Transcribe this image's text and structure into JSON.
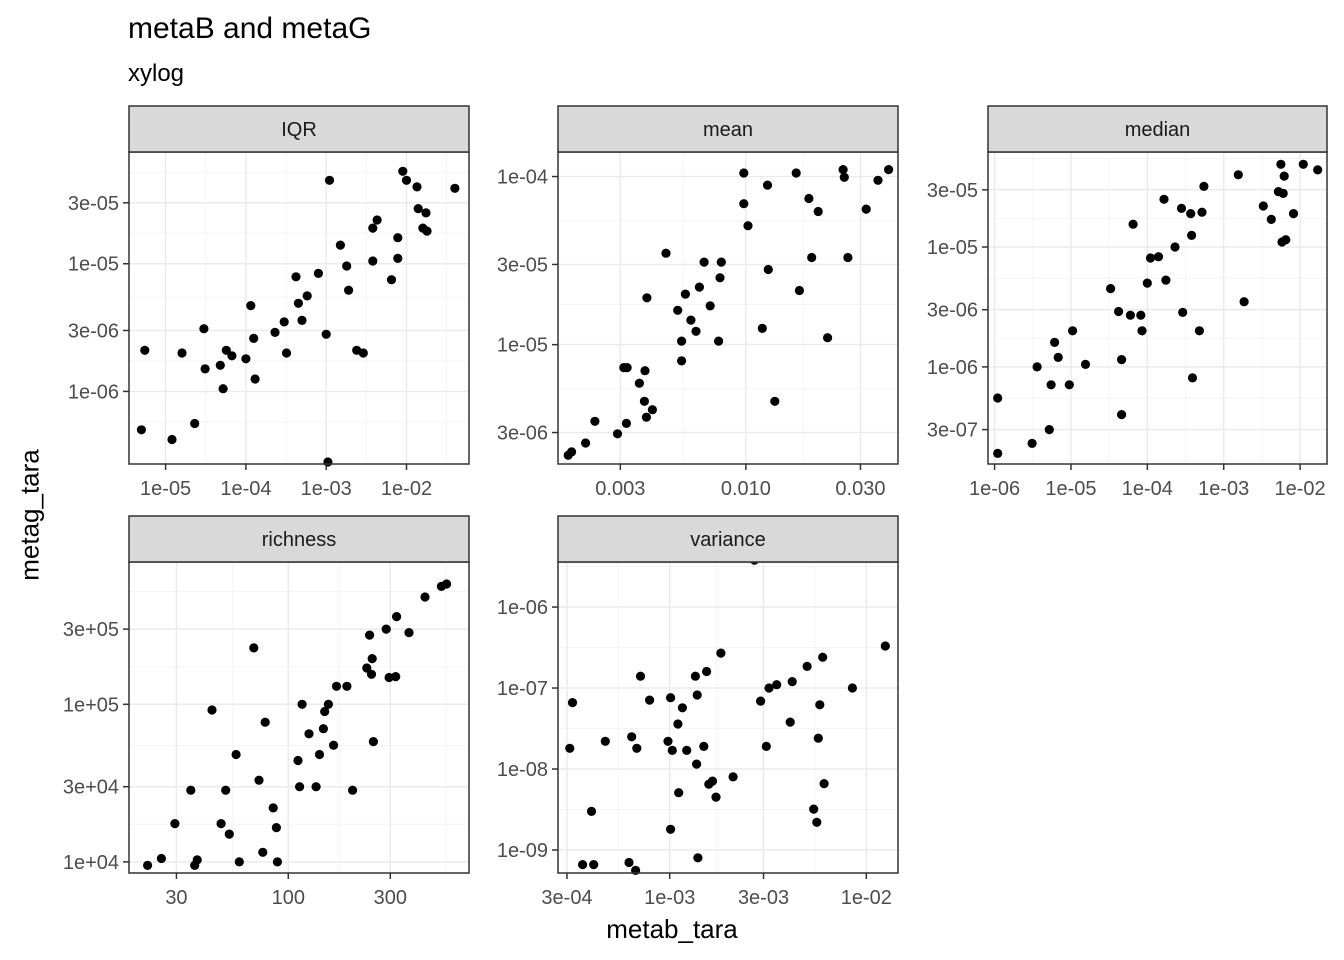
{
  "title": "metaB and metaG",
  "subtitle": "xylog",
  "xlabel": "metab_tara",
  "ylabel": "metag_tara",
  "colors": {
    "point": "#000000",
    "strip": "#d9d9d9",
    "grid_major": "#ebebeb",
    "grid_minor": "#f5f5f5",
    "panel_border": "#333333"
  },
  "chart_data": {
    "type": "scatter",
    "title": "metaB and metaG",
    "subtitle": "xylog",
    "xlabel": "metab_tara",
    "ylabel": "metag_tara",
    "x_scale": "log10",
    "y_scale": "log10",
    "grid": true,
    "facets": [
      {
        "name": "IQR",
        "xlim": [
          3.5e-06,
          0.06
        ],
        "ylim": [
          2.7e-07,
          7.5e-05
        ],
        "x_ticks": [
          1e-05,
          0.0001,
          0.001,
          0.01
        ],
        "x_tick_labels": [
          "1e-05",
          "1e-04",
          "1e-03",
          "1e-02"
        ],
        "y_ticks": [
          1e-06,
          3e-06,
          1e-05,
          3e-05
        ],
        "y_tick_labels": [
          "1e-06",
          "3e-06",
          "1e-05",
          "3e-05"
        ],
        "points": [
          [
            5e-06,
            5e-07
          ],
          [
            5.5e-06,
            2.1e-06
          ],
          [
            1.2e-05,
            4.2e-07
          ],
          [
            1.6e-05,
            2e-06
          ],
          [
            2.3e-05,
            5.6e-07
          ],
          [
            3e-05,
            3.1e-06
          ],
          [
            3.1e-05,
            1.5e-06
          ],
          [
            4.8e-05,
            1.6e-06
          ],
          [
            5.2e-05,
            1.05e-06
          ],
          [
            5.7e-05,
            2.1e-06
          ],
          [
            6.7e-05,
            1.9e-06
          ],
          [
            0.0001,
            1.8e-06
          ],
          [
            0.000115,
            4.7e-06
          ],
          [
            0.000125,
            2.6e-06
          ],
          [
            0.00013,
            1.25e-06
          ],
          [
            0.00023,
            2.9e-06
          ],
          [
            0.0003,
            3.5e-06
          ],
          [
            0.00032,
            2e-06
          ],
          [
            0.00042,
            7.9e-06
          ],
          [
            0.00045,
            4.9e-06
          ],
          [
            0.0005,
            3.6e-06
          ],
          [
            0.00058,
            5.6e-06
          ],
          [
            0.0008,
            8.4e-06
          ],
          [
            0.001,
            2.8e-06
          ],
          [
            0.00105,
            2.8e-07
          ],
          [
            0.0011,
            4.5e-05
          ],
          [
            0.0015,
            1.4e-05
          ],
          [
            0.0018,
            9.6e-06
          ],
          [
            0.0019,
            6.2e-06
          ],
          [
            0.0024,
            2.1e-06
          ],
          [
            0.0029,
            2e-06
          ],
          [
            0.0038,
            1.05e-05
          ],
          [
            0.0038,
            1.9e-05
          ],
          [
            0.0043,
            2.2e-05
          ],
          [
            0.0065,
            7.5e-06
          ],
          [
            0.0078,
            1.6e-05
          ],
          [
            0.0078,
            1.1e-05
          ],
          [
            0.009,
            5.3e-05
          ],
          [
            0.01,
            4.5e-05
          ],
          [
            0.0135,
            4e-05
          ],
          [
            0.014,
            2.7e-05
          ],
          [
            0.016,
            1.9e-05
          ],
          [
            0.0175,
            2.5e-05
          ],
          [
            0.018,
            1.8e-05
          ],
          [
            0.04,
            3.9e-05
          ]
        ]
      },
      {
        "name": "mean",
        "xlim": [
          0.00165,
          0.043
        ],
        "ylim": [
          1.95e-06,
          0.00014
        ],
        "x_ticks": [
          0.003,
          0.01,
          0.03
        ],
        "x_tick_labels": [
          "0.003",
          "0.010",
          "0.030"
        ],
        "y_ticks": [
          3e-06,
          1e-05,
          3e-05,
          0.0001
        ],
        "y_tick_labels": [
          "3e-06",
          "1e-05",
          "3e-05",
          "1e-04"
        ],
        "points": [
          [
            0.00182,
            2.2e-06
          ],
          [
            0.00188,
            2.3e-06
          ],
          [
            0.00215,
            2.6e-06
          ],
          [
            0.00235,
            3.5e-06
          ],
          [
            0.00292,
            2.95e-06
          ],
          [
            0.0031,
            7.3e-06
          ],
          [
            0.0032,
            7.3e-06
          ],
          [
            0.00318,
            3.4e-06
          ],
          [
            0.0036,
            5.9e-06
          ],
          [
            0.00378,
            4.6e-06
          ],
          [
            0.0038,
            7e-06
          ],
          [
            0.00385,
            3.7e-06
          ],
          [
            0.00387,
            1.9e-05
          ],
          [
            0.00408,
            4.1e-06
          ],
          [
            0.00465,
            3.5e-05
          ],
          [
            0.0052,
            1.6e-05
          ],
          [
            0.0054,
            1.05e-05
          ],
          [
            0.0054,
            8e-06
          ],
          [
            0.0056,
            2e-05
          ],
          [
            0.0059,
            1.4e-05
          ],
          [
            0.0062,
            1.2e-05
          ],
          [
            0.0064,
            2.2e-05
          ],
          [
            0.0067,
            3.1e-05
          ],
          [
            0.0071,
            1.7e-05
          ],
          [
            0.0077,
            1.05e-05
          ],
          [
            0.0078,
            2.5e-05
          ],
          [
            0.0079,
            3.1e-05
          ],
          [
            0.0098,
            0.000105
          ],
          [
            0.0098,
            6.9e-05
          ],
          [
            0.0102,
            5.1e-05
          ],
          [
            0.0117,
            1.25e-05
          ],
          [
            0.0123,
            8.9e-05
          ],
          [
            0.0124,
            2.8e-05
          ],
          [
            0.0132,
            4.6e-06
          ],
          [
            0.0162,
            0.000105
          ],
          [
            0.0167,
            2.1e-05
          ],
          [
            0.0183,
            7.4e-05
          ],
          [
            0.0188,
            3.3e-05
          ],
          [
            0.02,
            6.2e-05
          ],
          [
            0.0219,
            1.1e-05
          ],
          [
            0.0254,
            0.00011
          ],
          [
            0.0257,
            9.9e-05
          ],
          [
            0.0266,
            3.3e-05
          ],
          [
            0.0317,
            6.4e-05
          ],
          [
            0.0355,
            9.5e-05
          ],
          [
            0.0393,
            0.00011
          ]
        ]
      },
      {
        "name": "median",
        "xlim": [
          8.2e-07,
          0.0225
        ],
        "ylim": [
          1.55e-07,
          6.2e-05
        ],
        "x_ticks": [
          1e-06,
          1e-05,
          0.0001,
          0.001,
          0.01
        ],
        "x_tick_labels": [
          "1e-06",
          "1e-05",
          "1e-04",
          "1e-03",
          "1e-02"
        ],
        "y_ticks": [
          3e-07,
          1e-06,
          3e-06,
          1e-05,
          3e-05
        ],
        "y_tick_labels": [
          "3e-07",
          "1e-06",
          "3e-06",
          "1e-05",
          "3e-05"
        ],
        "points": [
          [
            1.1e-06,
            5.5e-07
          ],
          [
            1.1e-06,
            1.9e-07
          ],
          [
            3.1e-06,
            2.3e-07
          ],
          [
            3.6e-06,
            1e-06
          ],
          [
            5.2e-06,
            3e-07
          ],
          [
            5.5e-06,
            7.1e-07
          ],
          [
            6.1e-06,
            1.6e-06
          ],
          [
            6.8e-06,
            1.2e-06
          ],
          [
            9.5e-06,
            7.1e-07
          ],
          [
            1.05e-05,
            2e-06
          ],
          [
            1.55e-05,
            1.05e-06
          ],
          [
            3.3e-05,
            4.5e-06
          ],
          [
            4.2e-05,
            2.9e-06
          ],
          [
            4.6e-05,
            1.15e-06
          ],
          [
            4.6e-05,
            4e-07
          ],
          [
            6e-05,
            2.7e-06
          ],
          [
            6.5e-05,
            1.55e-05
          ],
          [
            8.2e-05,
            2.7e-06
          ],
          [
            8.5e-05,
            2e-06
          ],
          [
            0.0001,
            5e-06
          ],
          [
            0.00011,
            8.1e-06
          ],
          [
            0.00014,
            8.3e-06
          ],
          [
            0.000165,
            2.5e-05
          ],
          [
            0.000175,
            5.3e-06
          ],
          [
            0.00023,
            1e-05
          ],
          [
            0.00028,
            2.1e-05
          ],
          [
            0.00029,
            2.85e-06
          ],
          [
            0.00037,
            1.9e-05
          ],
          [
            0.00038,
            1.25e-05
          ],
          [
            0.00039,
            8.1e-07
          ],
          [
            0.00048,
            2e-06
          ],
          [
            0.00052,
            1.95e-05
          ],
          [
            0.00055,
            3.2e-05
          ],
          [
            0.00155,
            4e-05
          ],
          [
            0.00185,
            3.5e-06
          ],
          [
            0.0033,
            2.2e-05
          ],
          [
            0.0042,
            1.7e-05
          ],
          [
            0.0052,
            2.9e-05
          ],
          [
            0.0056,
            4.9e-05
          ],
          [
            0.0058,
            1.1e-05
          ],
          [
            0.006,
            2.8e-05
          ],
          [
            0.0062,
            3.9e-05
          ],
          [
            0.0065,
            1.15e-05
          ],
          [
            0.0082,
            1.9e-05
          ],
          [
            0.011,
            4.9e-05
          ],
          [
            0.017,
            4.4e-05
          ]
        ]
      },
      {
        "name": "richness",
        "xlim": [
          18,
          700
        ],
        "ylim": [
          8500,
          800000
        ],
        "x_ticks": [
          30,
          100,
          300
        ],
        "x_tick_labels": [
          "30",
          "100",
          "300"
        ],
        "y_ticks": [
          10000,
          30000,
          100000,
          300000
        ],
        "y_tick_labels": [
          "1e+04",
          "3e+04",
          "1e+05",
          "3e+05"
        ],
        "points": [
          [
            22,
            9500
          ],
          [
            25.5,
            10500
          ],
          [
            29.5,
            17500
          ],
          [
            35,
            28500
          ],
          [
            36.5,
            9500
          ],
          [
            37.5,
            10300
          ],
          [
            44,
            92000
          ],
          [
            48.5,
            17500
          ],
          [
            51,
            28500
          ],
          [
            53,
            15000
          ],
          [
            57,
            48000
          ],
          [
            59,
            10000
          ],
          [
            69,
            228000
          ],
          [
            73,
            33000
          ],
          [
            76,
            11500
          ],
          [
            78,
            77000
          ],
          [
            85,
            22000
          ],
          [
            88,
            16500
          ],
          [
            89,
            10000
          ],
          [
            111,
            44000
          ],
          [
            113,
            30000
          ],
          [
            116,
            100000
          ],
          [
            125,
            65000
          ],
          [
            135,
            30000
          ],
          [
            140,
            48000
          ],
          [
            146,
            70000
          ],
          [
            148,
            90000
          ],
          [
            154,
            100000
          ],
          [
            163,
            55000
          ],
          [
            168,
            130000
          ],
          [
            188,
            130000
          ],
          [
            200,
            28500
          ],
          [
            233,
            170000
          ],
          [
            240,
            275000
          ],
          [
            245,
            155000
          ],
          [
            247,
            195000
          ],
          [
            250,
            58000
          ],
          [
            287,
            300000
          ],
          [
            296,
            148000
          ],
          [
            318,
            150000
          ],
          [
            321,
            360000
          ],
          [
            367,
            285000
          ],
          [
            436,
            480000
          ],
          [
            520,
            560000
          ],
          [
            550,
            580000
          ]
        ]
      },
      {
        "name": "variance",
        "xlim": [
          0.00027,
          0.0145
        ],
        "ylim": [
          5.2e-10,
          3.6e-06
        ],
        "x_ticks": [
          0.0003,
          0.001,
          0.003,
          0.01
        ],
        "x_tick_labels": [
          "3e-04",
          "1e-03",
          "3e-03",
          "1e-02"
        ],
        "y_ticks": [
          1e-09,
          1e-08,
          1e-07,
          1e-06
        ],
        "y_tick_labels": [
          "1e-09",
          "1e-08",
          "1e-07",
          "1e-06"
        ],
        "points": [
          [
            0.00031,
            1.8e-08
          ],
          [
            0.00032,
            6.6e-08
          ],
          [
            0.00036,
            6.6e-10
          ],
          [
            0.0004,
            3e-09
          ],
          [
            0.00041,
            6.6e-10
          ],
          [
            0.00047,
            2.2e-08
          ],
          [
            0.00062,
            7e-10
          ],
          [
            0.00064,
            2.5e-08
          ],
          [
            0.00067,
            5.6e-10
          ],
          [
            0.00068,
            1.8e-08
          ],
          [
            0.00071,
            1.4e-07
          ],
          [
            0.00079,
            7.1e-08
          ],
          [
            0.00098,
            2.2e-08
          ],
          [
            0.00101,
            1.8e-09
          ],
          [
            0.00101,
            7.6e-08
          ],
          [
            0.00103,
            1.7e-08
          ],
          [
            0.0011,
            3.6e-08
          ],
          [
            0.00111,
            5.1e-09
          ],
          [
            0.00116,
            5.7e-08
          ],
          [
            0.00122,
            1.7e-08
          ],
          [
            0.00135,
            1.4e-07
          ],
          [
            0.00138,
            8.2e-08
          ],
          [
            0.00137,
            1.15e-08
          ],
          [
            0.00139,
            8e-10
          ],
          [
            0.00149,
            1.9e-08
          ],
          [
            0.00154,
            1.6e-07
          ],
          [
            0.00158,
            6.5e-09
          ],
          [
            0.00165,
            7.1e-09
          ],
          [
            0.00172,
            4.5e-09
          ],
          [
            0.00182,
            2.7e-07
          ],
          [
            0.0021,
            8e-09
          ],
          [
            0.0027,
            3.8e-06
          ],
          [
            0.0029,
            6.9e-08
          ],
          [
            0.0031,
            1.9e-08
          ],
          [
            0.0032,
            1e-07
          ],
          [
            0.0035,
            1.1e-07
          ],
          [
            0.0041,
            3.8e-08
          ],
          [
            0.0042,
            1.2e-07
          ],
          [
            0.005,
            1.85e-07
          ],
          [
            0.0054,
            3.2e-09
          ],
          [
            0.0056,
            2.2e-09
          ],
          [
            0.0057,
            2.4e-08
          ],
          [
            0.0058,
            6.2e-08
          ],
          [
            0.006,
            2.4e-07
          ],
          [
            0.0061,
            6.6e-09
          ],
          [
            0.0085,
            1e-07
          ],
          [
            0.0125,
            3.3e-07
          ]
        ]
      }
    ]
  }
}
